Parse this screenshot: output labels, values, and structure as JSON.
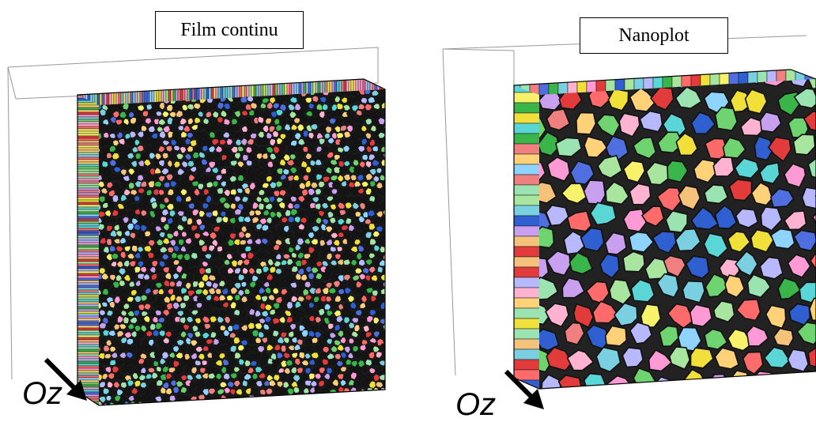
{
  "panels": [
    {
      "id": "left",
      "title": "Film continu",
      "axis_label": "Oz"
    },
    {
      "id": "right",
      "title": "Nanoplot",
      "axis_label": "Oz"
    }
  ],
  "palette": [
    "#e23b3b",
    "#2f5fd0",
    "#39b54a",
    "#f2e03a",
    "#ff9ad5",
    "#5ad6d6",
    "#a8e6a0",
    "#f4c27a",
    "#c9a0f0",
    "#8fd3ff",
    "#f7f26a",
    "#ff6a6a",
    "#6fd46f",
    "#ffb3d1",
    "#b8b8ff",
    "#9be3b0",
    "#ffd27a",
    "#7ad0e0",
    "#f08080",
    "#4f6fe0"
  ]
}
